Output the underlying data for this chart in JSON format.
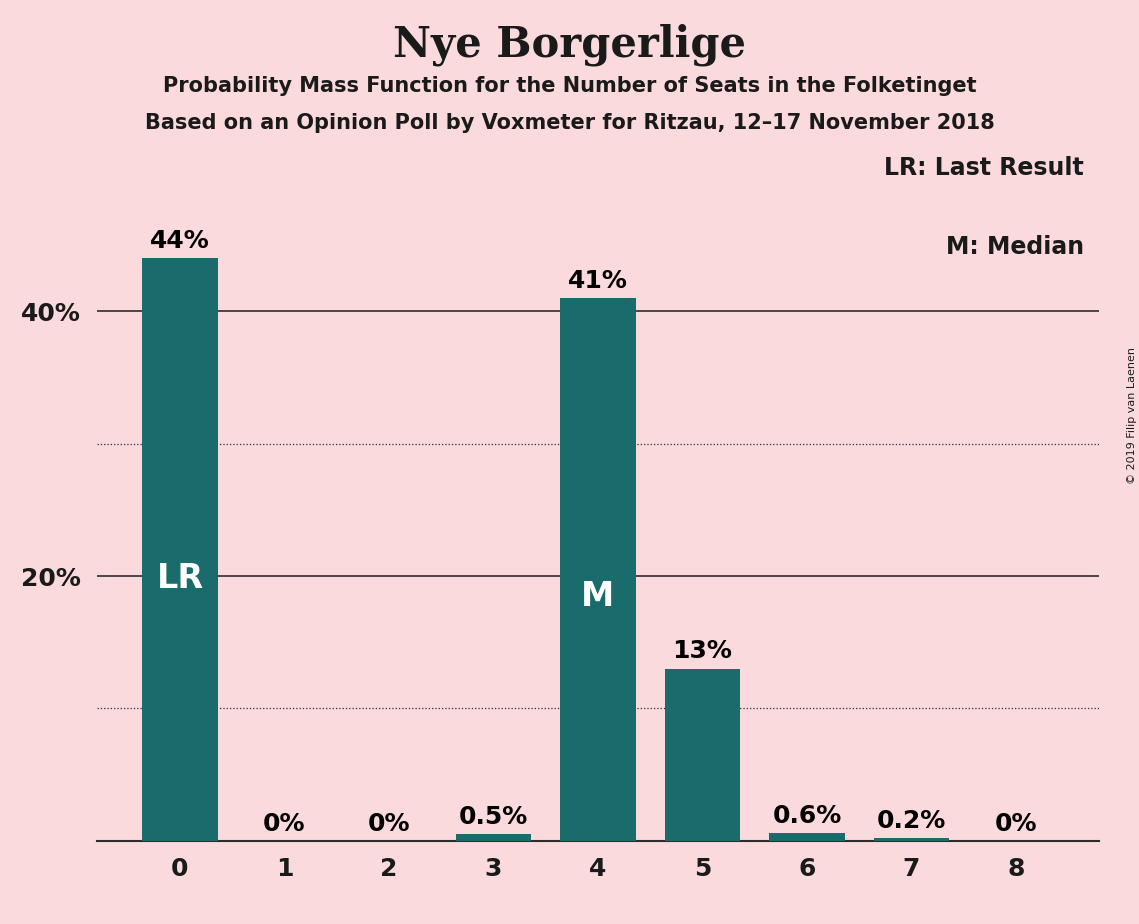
{
  "title": "Nye Borgerlige",
  "subtitle1": "Probability Mass Function for the Number of Seats in the Folketinget",
  "subtitle2": "Based on an Opinion Poll by Voxmeter for Ritzau, 12–17 November 2018",
  "categories": [
    0,
    1,
    2,
    3,
    4,
    5,
    6,
    7,
    8
  ],
  "values": [
    0.44,
    0.0,
    0.0,
    0.005,
    0.41,
    0.13,
    0.006,
    0.002,
    0.0
  ],
  "bar_color": "#1a6b6b",
  "background_color": "#fadadd",
  "label_texts": [
    "44%",
    "0%",
    "0%",
    "0.5%",
    "41%",
    "13%",
    "0.6%",
    "0.2%",
    "0%"
  ],
  "lr_bar": 0,
  "median_bar": 4,
  "lr_label": "LR",
  "median_label": "M",
  "legend_lr": "LR: Last Result",
  "legend_m": "M: Median",
  "copyright": "© 2019 Filip van Laenen",
  "yticks": [
    0.2,
    0.4
  ],
  "ytick_labels": [
    "20%",
    "40%"
  ],
  "ylim": [
    0,
    0.52
  ],
  "solid_gridlines": [
    0.2,
    0.4
  ],
  "dotted_gridlines": [
    0.1,
    0.3
  ],
  "title_fontsize": 30,
  "subtitle_fontsize": 15,
  "axis_label_fontsize": 18,
  "bar_label_fontsize": 18,
  "inner_label_fontsize": 24,
  "legend_fontsize": 17,
  "copyright_fontsize": 8
}
